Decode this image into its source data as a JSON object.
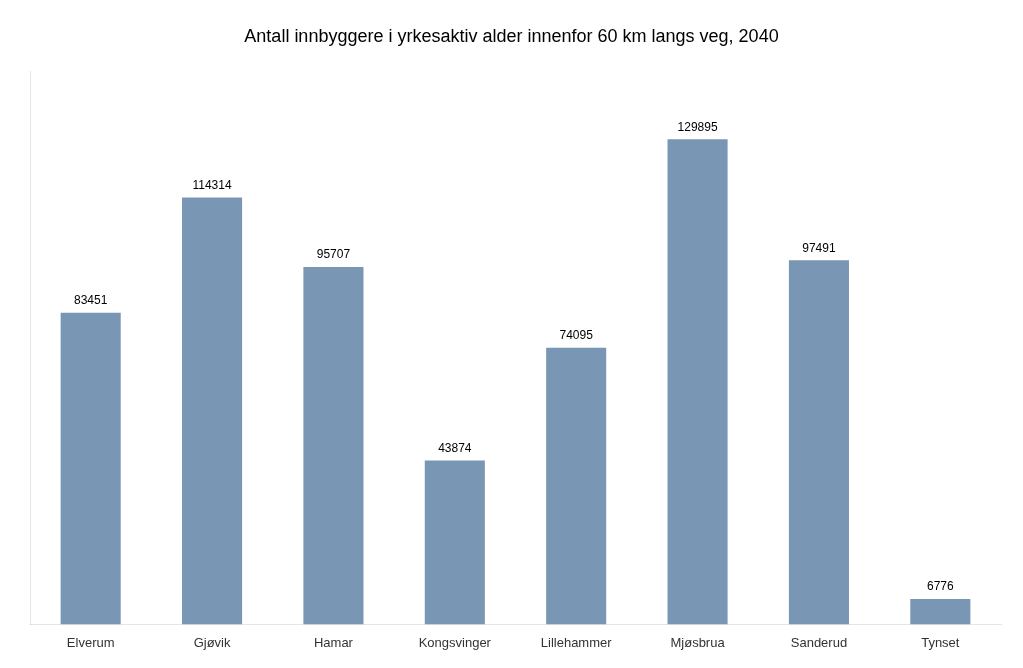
{
  "chart_data": {
    "type": "bar",
    "title": "Antall innbyggere i yrkesaktiv alder innenfor 60 km langs veg, 2040",
    "categories": [
      "Elverum",
      "Gjøvik",
      "Hamar",
      "Kongsvinger",
      "Lillehammer",
      "Mjøsbrua",
      "Sanderud",
      "Tynset"
    ],
    "values": [
      83451,
      114314,
      95707,
      43874,
      74095,
      129895,
      97491,
      6776
    ],
    "color": "#7a96b5",
    "ylim": [
      0,
      148000
    ],
    "grid": false,
    "tick_labels": "x",
    "data_labels": true
  }
}
